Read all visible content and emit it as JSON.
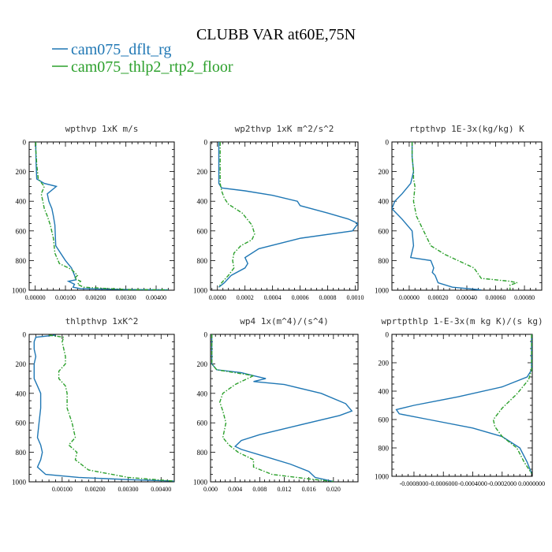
{
  "title": "CLUBB VAR at60E,75N",
  "legend": [
    {
      "name": "cam075_dflt_rg",
      "color": "#1f77b4",
      "dash": "solid"
    },
    {
      "name": "cam075_thlp2_rtp2_floor",
      "color": "#2ca02c",
      "dash": "dashdot"
    }
  ],
  "chart_data": [
    {
      "type": "line",
      "title": "wpthvp  1xK m/s",
      "xlim": [
        -0.0002,
        0.0046
      ],
      "ylim": [
        1000,
        0
      ],
      "xticks": [
        0,
        0.001,
        0.002,
        0.003,
        0.004
      ],
      "xticklabels": [
        "0.00000",
        "0.00100",
        "0.00200",
        "0.00300",
        "0.00400"
      ],
      "yticks": [
        0,
        200,
        400,
        600,
        800,
        1000
      ],
      "yticklabels": [
        "0",
        "200",
        "400",
        "600",
        "800",
        "1000"
      ],
      "series": [
        {
          "name": "cam075_dflt_rg",
          "x": [
            2e-05,
            2e-05,
            3e-05,
            5e-05,
            0.0003,
            0.0007,
            0.0004,
            0.00045,
            0.00055,
            0.0006,
            0.00065,
            0.00068,
            0.001,
            0.0012,
            0.0013,
            0.00135,
            0.0011,
            0.0013,
            0.00125,
            0.0015,
            0.003,
            0.0044
          ],
          "y": [
            0,
            50,
            150,
            250,
            280,
            300,
            350,
            400,
            450,
            500,
            560,
            700,
            800,
            850,
            900,
            930,
            940,
            960,
            980,
            990,
            995,
            998
          ]
        },
        {
          "name": "cam075_thlp2_rtp2_floor",
          "x": [
            2e-05,
            2e-05,
            5e-05,
            0.0001,
            0.0003,
            0.0002,
            0.00025,
            0.0003,
            0.0004,
            0.0005,
            0.0006,
            0.00065,
            0.0008,
            0.0012,
            0.0014,
            0.0013,
            0.0015,
            0.0014,
            0.0016,
            0.003,
            0.0044
          ],
          "y": [
            0,
            50,
            150,
            250,
            300,
            350,
            400,
            450,
            500,
            560,
            650,
            750,
            820,
            860,
            900,
            920,
            940,
            960,
            980,
            995,
            998
          ]
        }
      ]
    },
    {
      "type": "line",
      "title": "wp2thvp  1xK m^2/s^2",
      "xlim": [
        -5e-05,
        0.00102
      ],
      "ylim": [
        1000,
        0
      ],
      "xticks": [
        0,
        0.0002,
        0.0004,
        0.0006,
        0.0008,
        0.001
      ],
      "xticklabels": [
        "0.0000",
        "0.0002",
        "0.0004",
        "0.0006",
        "0.0008",
        "0.0010"
      ],
      "yticks": [
        0,
        200,
        400,
        600,
        800,
        1000
      ],
      "yticklabels": [
        "0",
        "200",
        "400",
        "600",
        "800",
        "1000"
      ],
      "series": [
        {
          "name": "cam075_dflt_rg",
          "x": [
            1e-05,
            1e-05,
            1e-05,
            1e-05,
            3e-05,
            0.0002,
            0.0004,
            0.00058,
            0.0006,
            0.0008,
            0.00095,
            0.00102,
            0.00098,
            0.0006,
            0.0003,
            0.0002,
            0.00022,
            0.0002,
            0.0001,
            5e-05,
            1e-05
          ],
          "y": [
            0,
            100,
            200,
            280,
            310,
            330,
            360,
            400,
            430,
            480,
            520,
            550,
            600,
            650,
            720,
            780,
            820,
            850,
            900,
            950,
            980
          ]
        },
        {
          "name": "cam075_thlp2_rtp2_floor",
          "x": [
            2e-05,
            2e-05,
            2e-05,
            2e-05,
            3e-05,
            5e-05,
            8e-05,
            0.00018,
            0.00025,
            0.00027,
            0.00025,
            0.00017,
            0.00012,
            0.00011,
            0.00012,
            8e-05,
            3e-05,
            1e-05
          ],
          "y": [
            0,
            100,
            200,
            280,
            330,
            380,
            420,
            480,
            560,
            620,
            660,
            700,
            750,
            800,
            850,
            900,
            950,
            980
          ]
        }
      ]
    },
    {
      "type": "line",
      "title": "rtpthvp  1E-3x(kg/kg) K",
      "xlim": [
        -0.00012,
        0.00092
      ],
      "ylim": [
        1000,
        0
      ],
      "xticks": [
        0,
        0.0002,
        0.0004,
        0.0006,
        0.0008
      ],
      "xticklabels": [
        "0.00000",
        "0.00020",
        "0.00040",
        "0.00060",
        "0.00080"
      ],
      "yticks": [
        0,
        200,
        400,
        600,
        800,
        1000
      ],
      "yticklabels": [
        "0",
        "200",
        "400",
        "600",
        "800",
        "1000"
      ],
      "series": [
        {
          "name": "cam075_dflt_rg",
          "x": [
            2e-05,
            2e-05,
            3e-05,
            1e-05,
            -5e-05,
            -0.0001,
            -0.00012,
            -5e-05,
            2e-05,
            3e-05,
            1e-05,
            0.00015,
            0.00017,
            0.00016,
            0.00018,
            0.0002,
            0.0003,
            0.0005
          ],
          "y": [
            0,
            100,
            200,
            280,
            350,
            400,
            450,
            520,
            600,
            700,
            780,
            800,
            850,
            880,
            900,
            950,
            980,
            998
          ]
        },
        {
          "name": "cam075_thlp2_rtp2_floor",
          "x": [
            2e-05,
            2e-05,
            3e-05,
            3e-05,
            4e-05,
            3e-05,
            5e-05,
            0.0001,
            0.00015,
            0.00025,
            0.00045,
            0.0005,
            0.0007,
            0.00075,
            0.0007,
            0.0007,
            0.0007
          ],
          "y": [
            0,
            100,
            200,
            250,
            300,
            400,
            500,
            600,
            700,
            760,
            850,
            920,
            940,
            950,
            965,
            985,
            998
          ]
        }
      ]
    },
    {
      "type": "line",
      "title": "thlpthvp  1xK^2",
      "xlim": [
        0,
        0.0044
      ],
      "ylim": [
        1000,
        0
      ],
      "xticks": [
        0.001,
        0.002,
        0.003,
        0.004
      ],
      "xticklabels": [
        "0.00100",
        "0.00200",
        "0.00300",
        "0.00400"
      ],
      "yticks": [
        0,
        200,
        400,
        600,
        800,
        1000
      ],
      "yticklabels": [
        "0",
        "200",
        "400",
        "600",
        "800",
        "1000"
      ],
      "series": [
        {
          "name": "cam075_dflt_rg",
          "x": [
            0.0008,
            0.0002,
            0.00015,
            0.00015,
            0.0002,
            0.00015,
            0.00015,
            0.00015,
            0.00025,
            0.00035,
            0.00035,
            0.0003,
            0.00025,
            0.00035,
            0.0004,
            0.00035,
            0.00025,
            0.0005,
            0.0015,
            0.003,
            0.0044
          ],
          "y": [
            5,
            20,
            50,
            100,
            150,
            200,
            250,
            300,
            350,
            400,
            500,
            600,
            700,
            750,
            800,
            850,
            900,
            950,
            970,
            985,
            995
          ]
        },
        {
          "name": "cam075_thlp2_rtp2_floor",
          "x": [
            0.0006,
            0.00105,
            0.001,
            0.00105,
            0.0011,
            0.0011,
            0.0009,
            0.0009,
            0.0011,
            0.00115,
            0.00115,
            0.0013,
            0.0014,
            0.0012,
            0.00145,
            0.0014,
            0.0018,
            0.003,
            0.0044
          ],
          "y": [
            5,
            20,
            50,
            100,
            150,
            200,
            250,
            300,
            350,
            400,
            500,
            600,
            700,
            750,
            800,
            850,
            920,
            970,
            995
          ]
        }
      ]
    },
    {
      "type": "line",
      "title": "wp4  1x(m^4)/(s^4)",
      "xlim": [
        0,
        0.024
      ],
      "ylim": [
        1000,
        0
      ],
      "xticks": [
        0,
        0.004,
        0.008,
        0.012,
        0.016,
        0.02
      ],
      "xticklabels": [
        "0.000",
        "0.004",
        "0.008",
        "0.012",
        "0.016",
        "0.020"
      ],
      "yticks": [
        0,
        200,
        400,
        600,
        800,
        1000
      ],
      "yticklabels": [
        "0",
        "200",
        "400",
        "600",
        "800",
        "1000"
      ],
      "series": [
        {
          "name": "cam075_dflt_rg",
          "x": [
            0.0002,
            0.0002,
            0.0002,
            0.0002,
            0.001,
            0.005,
            0.007,
            0.009,
            0.007,
            0.012,
            0.018,
            0.022,
            0.023,
            0.021,
            0.014,
            0.008,
            0.005,
            0.004,
            0.005,
            0.009,
            0.013,
            0.016,
            0.017,
            0.02
          ],
          "y": [
            0,
            100,
            150,
            200,
            240,
            260,
            280,
            300,
            320,
            340,
            400,
            470,
            520,
            550,
            620,
            680,
            720,
            760,
            780,
            830,
            880,
            930,
            970,
            998
          ]
        },
        {
          "name": "cam075_thlp2_rtp2_floor",
          "x": [
            0.0002,
            0.0002,
            0.0002,
            0.0002,
            0.001,
            0.007,
            0.004,
            0.002,
            0.0015,
            0.002,
            0.0025,
            0.002,
            0.003,
            0.0045,
            0.007,
            0.007,
            0.01,
            0.016,
            0.02
          ],
          "y": [
            0,
            100,
            150,
            200,
            240,
            280,
            340,
            400,
            460,
            520,
            600,
            700,
            750,
            800,
            850,
            900,
            950,
            980,
            998
          ]
        }
      ]
    },
    {
      "type": "line",
      "title": "wprtpthlp  1-E-3x(m kg K)/(s kg)",
      "xlim": [
        -0.00095,
        5e-06
      ],
      "ylim": [
        1000,
        0
      ],
      "xticks": [
        -0.0008,
        -0.0006,
        -0.0004,
        -0.0002,
        0
      ],
      "xticklabels": [
        "-0.0008000",
        "-0.0006000",
        "-0.0004000",
        "-0.0002000",
        "0.0000000"
      ],
      "yticks": [
        0,
        200,
        400,
        600,
        800,
        1000
      ],
      "yticklabels": [
        "0",
        "200",
        "400",
        "600",
        "800",
        "1000"
      ],
      "series": [
        {
          "name": "cam075_dflt_rg",
          "x": [
            0,
            0,
            0,
            -3e-05,
            -0.0002,
            -0.0005,
            -0.0008,
            -0.00092,
            -0.0009,
            -0.0007,
            -0.0004,
            -0.0002,
            -8e-05,
            -3e-05,
            0
          ],
          "y": [
            0,
            100,
            250,
            300,
            370,
            440,
            500,
            530,
            560,
            600,
            660,
            720,
            800,
            900,
            980
          ]
        },
        {
          "name": "cam075_thlp2_rtp2_floor",
          "x": [
            0,
            0,
            0,
            -2e-05,
            -0.0001,
            -0.0002,
            -0.00026,
            -0.00025,
            -0.0002,
            -0.0001,
            -5e-05,
            0
          ],
          "y": [
            0,
            100,
            250,
            320,
            420,
            520,
            600,
            650,
            720,
            800,
            900,
            980
          ]
        }
      ]
    }
  ]
}
